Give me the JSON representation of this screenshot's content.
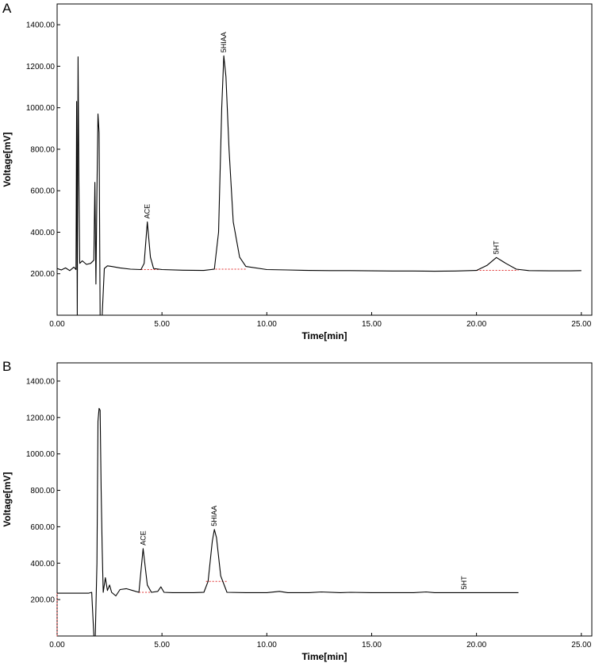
{
  "chart_data": [
    {
      "panel": "A",
      "type": "line",
      "xlabel": "Time[min]",
      "ylabel": "Voltage[mV]",
      "xlim": [
        0,
        25.5
      ],
      "ylim": [
        0,
        1500
      ],
      "xticks": [
        0,
        5,
        10,
        15,
        20,
        25
      ],
      "xtick_labels": [
        "0.00",
        "5.00",
        "10.00",
        "15.00",
        "20.00",
        "25.00"
      ],
      "yticks": [
        200,
        400,
        600,
        800,
        1000,
        1200,
        1400
      ],
      "ytick_labels": [
        "200.00",
        "400.00",
        "600.00",
        "800.00",
        "1000.00",
        "1200.00",
        "1400.00"
      ],
      "grid": false,
      "peaks": [
        {
          "label": "ACE",
          "x": 4.3,
          "y": 450
        },
        {
          "label": "5HIAA",
          "x": 7.95,
          "y": 1250
        },
        {
          "label": "5HT",
          "x": 20.95,
          "y": 278
        }
      ],
      "baselines": [
        [
          4.0,
          4.9
        ],
        [
          7.4,
          9.0
        ],
        [
          20.0,
          22.0
        ]
      ],
      "trace": [
        [
          0,
          225
        ],
        [
          0.2,
          218
        ],
        [
          0.4,
          228
        ],
        [
          0.6,
          215
        ],
        [
          0.8,
          232
        ],
        [
          0.9,
          220
        ],
        [
          0.93,
          1030
        ],
        [
          0.96,
          0
        ],
        [
          1.0,
          1245
        ],
        [
          1.04,
          630
        ],
        [
          1.08,
          250
        ],
        [
          1.2,
          262
        ],
        [
          1.4,
          245
        ],
        [
          1.6,
          250
        ],
        [
          1.75,
          265
        ],
        [
          1.8,
          640
        ],
        [
          1.85,
          150
        ],
        [
          1.9,
          600
        ],
        [
          1.95,
          970
        ],
        [
          2.0,
          880
        ],
        [
          2.05,
          0
        ],
        [
          2.15,
          0
        ],
        [
          2.25,
          225
        ],
        [
          2.4,
          238
        ],
        [
          2.6,
          235
        ],
        [
          3.0,
          228
        ],
        [
          3.5,
          222
        ],
        [
          4.0,
          220
        ],
        [
          4.15,
          250
        ],
        [
          4.3,
          450
        ],
        [
          4.45,
          280
        ],
        [
          4.6,
          225
        ],
        [
          5.0,
          220
        ],
        [
          6.0,
          217
        ],
        [
          7.0,
          216
        ],
        [
          7.5,
          222
        ],
        [
          7.7,
          400
        ],
        [
          7.85,
          1000
        ],
        [
          7.95,
          1250
        ],
        [
          8.05,
          1150
        ],
        [
          8.2,
          800
        ],
        [
          8.4,
          450
        ],
        [
          8.7,
          280
        ],
        [
          9.0,
          235
        ],
        [
          10.0,
          220
        ],
        [
          11.0,
          218
        ],
        [
          12.0,
          216
        ],
        [
          13.0,
          215
        ],
        [
          14.0,
          215
        ],
        [
          15.0,
          214
        ],
        [
          16.0,
          213
        ],
        [
          17.0,
          213
        ],
        [
          18.0,
          212
        ],
        [
          19.0,
          213
        ],
        [
          20.0,
          216
        ],
        [
          20.5,
          240
        ],
        [
          20.95,
          278
        ],
        [
          21.4,
          250
        ],
        [
          21.9,
          222
        ],
        [
          22.5,
          215
        ],
        [
          23.5,
          214
        ],
        [
          24.5,
          214
        ],
        [
          25.0,
          215
        ]
      ]
    },
    {
      "panel": "B",
      "type": "line",
      "xlabel": "Time[min]",
      "ylabel": "Voltage[mV]",
      "xlim": [
        0,
        25.5
      ],
      "ylim": [
        0,
        1500
      ],
      "xticks": [
        0,
        5,
        10,
        15,
        20,
        25
      ],
      "xtick_labels": [
        "0.00",
        "5.00",
        "10.00",
        "15.00",
        "20.00",
        "25.00"
      ],
      "yticks": [
        200,
        400,
        600,
        800,
        1000,
        1200,
        1400
      ],
      "ytick_labels": [
        "200.00",
        "400.00",
        "600.00",
        "800.00",
        "1000.00",
        "1200.00",
        "1400.00"
      ],
      "grid": false,
      "peaks": [
        {
          "label": "ACE",
          "x": 4.1,
          "y": 480
        },
        {
          "label": "5HIAA",
          "x": 7.5,
          "y": 585
        },
        {
          "label": "5HT",
          "x": 19.4,
          "y": 238
        }
      ],
      "baselines": [
        [
          0,
          0
        ],
        [
          3.9,
          4.5
        ],
        [
          7.1,
          8.1
        ]
      ],
      "trace": [
        [
          0,
          235
        ],
        [
          0.5,
          235
        ],
        [
          1.0,
          235
        ],
        [
          1.5,
          235
        ],
        [
          1.65,
          240
        ],
        [
          1.75,
          0
        ],
        [
          1.82,
          0
        ],
        [
          1.9,
          400
        ],
        [
          1.95,
          1180
        ],
        [
          2.0,
          1250
        ],
        [
          2.05,
          1240
        ],
        [
          2.1,
          800
        ],
        [
          2.15,
          480
        ],
        [
          2.2,
          240
        ],
        [
          2.3,
          320
        ],
        [
          2.4,
          250
        ],
        [
          2.5,
          280
        ],
        [
          2.6,
          240
        ],
        [
          2.8,
          220
        ],
        [
          3.0,
          255
        ],
        [
          3.3,
          260
        ],
        [
          3.6,
          250
        ],
        [
          3.9,
          240
        ],
        [
          4.1,
          480
        ],
        [
          4.3,
          280
        ],
        [
          4.5,
          240
        ],
        [
          4.8,
          245
        ],
        [
          4.95,
          270
        ],
        [
          5.1,
          240
        ],
        [
          5.5,
          238
        ],
        [
          6.5,
          238
        ],
        [
          7.0,
          240
        ],
        [
          7.2,
          300
        ],
        [
          7.4,
          520
        ],
        [
          7.5,
          585
        ],
        [
          7.6,
          540
        ],
        [
          7.8,
          330
        ],
        [
          8.1,
          240
        ],
        [
          9.0,
          238
        ],
        [
          10.0,
          238
        ],
        [
          10.6,
          245
        ],
        [
          11.0,
          238
        ],
        [
          12.0,
          238
        ],
        [
          12.6,
          242
        ],
        [
          13.5,
          238
        ],
        [
          14.0,
          240
        ],
        [
          15.0,
          238
        ],
        [
          16.0,
          238
        ],
        [
          17.0,
          238
        ],
        [
          17.6,
          242
        ],
        [
          18.0,
          238
        ],
        [
          19.0,
          238
        ],
        [
          19.4,
          238
        ],
        [
          20.0,
          238
        ],
        [
          21.0,
          238
        ],
        [
          22.0,
          238
        ]
      ]
    }
  ]
}
